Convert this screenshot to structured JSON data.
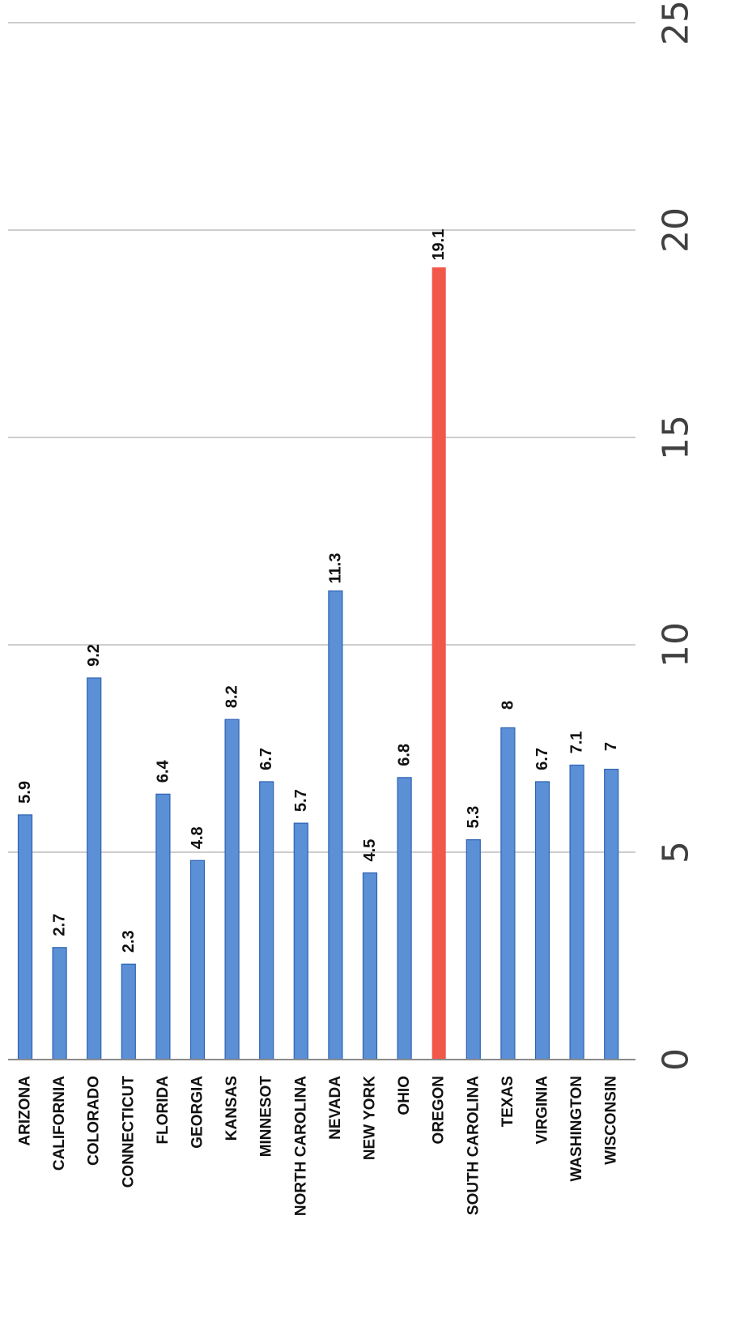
{
  "chart_data": {
    "type": "bar",
    "orientation": "horizontal",
    "categories": [
      "ARIZONA",
      "CALIFORNIA",
      "COLORADO",
      "CONNECTICUT",
      "FLORIDA",
      "GEORGIA",
      "KANSAS",
      "MINNESOT",
      "NORTH CAROLINA",
      "NEVADA",
      "NEW YORK",
      "OHIO",
      "OREGON",
      "SOUTH CAROLINA",
      "TEXAS",
      "VIRGINIA",
      "WASHINGTON",
      "WISCONSIN"
    ],
    "values": [
      5.9,
      2.7,
      9.2,
      2.3,
      6.4,
      4.8,
      8.2,
      6.7,
      5.7,
      11.3,
      4.5,
      6.8,
      19.1,
      5.3,
      8,
      6.7,
      7.1,
      7
    ],
    "data_labels": [
      "5.9",
      "2.7",
      "9.2",
      "2.3",
      "6.4",
      "4.8",
      "8.2",
      "6.7",
      "5.7",
      "11.3",
      "4.5",
      "6.8",
      "19.1",
      "5.3",
      "8",
      "6.7",
      "7.1",
      "7"
    ],
    "highlight_category": "OREGON",
    "xlim": [
      0,
      25
    ],
    "ticks": [
      0,
      5,
      10,
      15,
      20,
      25
    ],
    "tick_labels": [
      "0",
      "5",
      "10",
      "15",
      "20",
      "25"
    ],
    "grid": true,
    "rotation": "page rotated 90 degrees clockwise",
    "colors": {
      "bar": "#5b8fd6",
      "bar_edge": "#2f63b3",
      "highlight": "#f2584a",
      "grid": "#bdbdbd"
    }
  }
}
